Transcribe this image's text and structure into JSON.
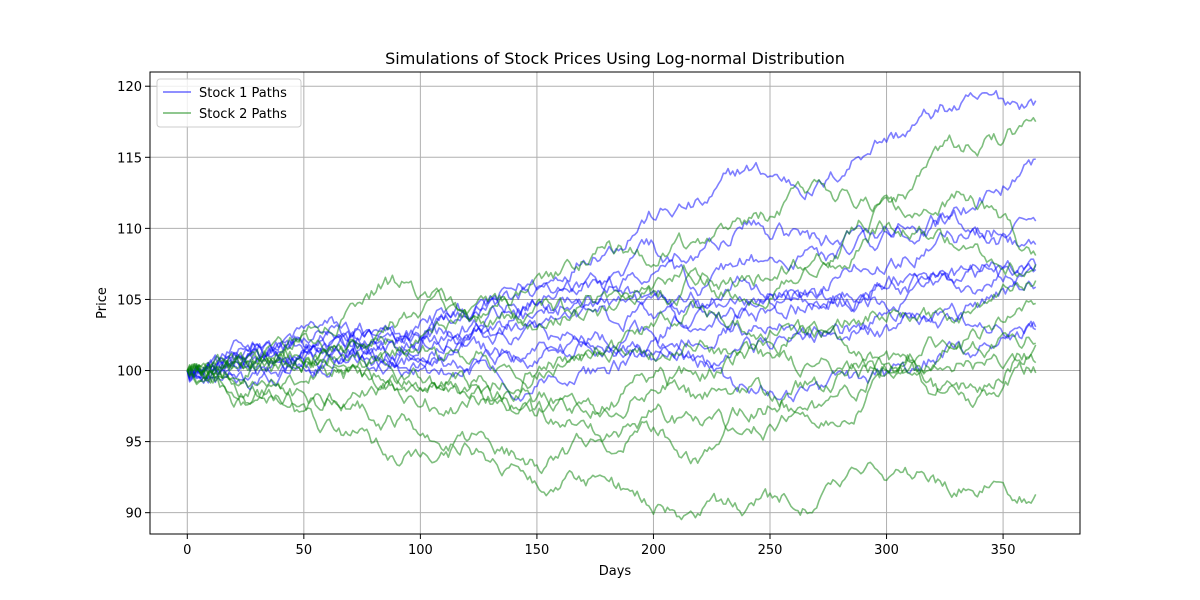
{
  "chart_data": {
    "type": "line",
    "title": "Simulations of Stock Prices Using Log-normal Distribution",
    "xlabel": "Days",
    "ylabel": "Price",
    "xlim": [
      -16,
      383
    ],
    "ylim": [
      88.5,
      121
    ],
    "xticks": [
      0,
      50,
      100,
      150,
      200,
      250,
      300,
      350
    ],
    "yticks": [
      90,
      95,
      100,
      105,
      110,
      115,
      120
    ],
    "grid": true,
    "legend_position": "upper-left",
    "legend": [
      {
        "label": "Stock 1 Paths",
        "color": "#0000ff"
      },
      {
        "label": "Stock 2 Paths",
        "color": "#008000"
      }
    ],
    "line_alpha": 0.5,
    "n_days": 365,
    "groups": [
      {
        "name": "Stock 1 Paths",
        "color": "#0000ff",
        "paths": [
          {
            "x": [
              0,
              30,
              60,
              90,
              120,
              150,
              180,
              200,
              220,
              240,
              270,
              300,
              330,
              364
            ],
            "y": [
              100,
              101.5,
              103,
              102,
              104,
              106,
              109,
              111,
              111.5,
              114,
              113,
              116.5,
              118.5,
              119
            ]
          },
          {
            "x": [
              0,
              30,
              60,
              90,
              120,
              150,
              180,
              200,
              220,
              240,
              270,
              300,
              330,
              364
            ],
            "y": [
              100,
              101,
              101.5,
              102,
              102.5,
              104,
              106,
              108,
              108.5,
              110,
              109,
              110,
              111,
              114.3
            ]
          },
          {
            "x": [
              0,
              30,
              60,
              90,
              120,
              150,
              180,
              200,
              220,
              240,
              270,
              300,
              330,
              364
            ],
            "y": [
              100,
              101,
              101.5,
              102.5,
              103.5,
              105,
              106,
              107,
              106,
              107.5,
              108,
              109,
              110.5,
              109.5
            ]
          },
          {
            "x": [
              0,
              30,
              60,
              90,
              120,
              150,
              180,
              200,
              220,
              240,
              270,
              300,
              330,
              364
            ],
            "y": [
              100,
              102,
              103,
              102.5,
              104,
              105.5,
              106,
              105,
              104.5,
              104,
              106,
              108,
              109.5,
              109
            ]
          },
          {
            "x": [
              0,
              30,
              60,
              90,
              120,
              150,
              180,
              200,
              220,
              240,
              270,
              300,
              330,
              364
            ],
            "y": [
              100,
              101.5,
              102,
              101.5,
              103,
              104.5,
              105,
              104,
              103,
              104.5,
              105,
              106,
              106.5,
              107.5
            ]
          },
          {
            "x": [
              0,
              30,
              60,
              90,
              120,
              150,
              180,
              200,
              220,
              240,
              270,
              300,
              330,
              364
            ],
            "y": [
              100,
              100.5,
              101,
              101.5,
              102.5,
              103,
              103.5,
              104.5,
              105,
              106,
              105,
              104.5,
              106,
              106.8
            ]
          },
          {
            "x": [
              0,
              30,
              60,
              90,
              120,
              150,
              180,
              200,
              220,
              240,
              270,
              300,
              330,
              364
            ],
            "y": [
              100,
              101,
              102,
              102.5,
              103,
              102.5,
              102,
              103,
              104,
              105,
              104.5,
              106,
              107,
              106.5
            ]
          },
          {
            "x": [
              0,
              30,
              60,
              90,
              120,
              150,
              180,
              200,
              220,
              240,
              270,
              300,
              330,
              364
            ],
            "y": [
              100,
              100.5,
              101.5,
              100.5,
              101.5,
              101,
              102,
              101.5,
              102.5,
              103,
              102.5,
              103.5,
              104,
              106
            ]
          },
          {
            "x": [
              0,
              30,
              60,
              90,
              120,
              150,
              180,
              200,
              220,
              240,
              270,
              300,
              330,
              364
            ],
            "y": [
              100,
              99.5,
              100.5,
              101,
              100.5,
              101.5,
              102,
              101,
              100.5,
              101.5,
              102.5,
              103,
              103.5,
              103
            ]
          },
          {
            "x": [
              0,
              30,
              60,
              90,
              120,
              150,
              180,
              200,
              220,
              240,
              270,
              300,
              330,
              364
            ],
            "y": [
              100,
              100,
              100.5,
              100.5,
              100,
              99.5,
              100,
              101,
              100.5,
              99,
              98.5,
              99.5,
              101.5,
              102.8
            ]
          }
        ]
      },
      {
        "name": "Stock 2 Paths",
        "color": "#008000",
        "paths": [
          {
            "x": [
              0,
              30,
              60,
              90,
              120,
              150,
              180,
              200,
              220,
              240,
              270,
              300,
              330,
              364
            ],
            "y": [
              100,
              101,
              102.5,
              102,
              103.5,
              106,
              108.5,
              108,
              109,
              110.5,
              112.5,
              112,
              115.5,
              117
            ]
          },
          {
            "x": [
              0,
              30,
              60,
              90,
              120,
              150,
              180,
              200,
              220,
              240,
              270,
              300,
              330,
              364
            ],
            "y": [
              100,
              100.5,
              103,
              106,
              104,
              103.5,
              104.5,
              106,
              107,
              106.5,
              108,
              111,
              112.5,
              108.5
            ]
          },
          {
            "x": [
              0,
              30,
              60,
              90,
              120,
              150,
              180,
              200,
              220,
              240,
              270,
              300,
              330,
              364
            ],
            "y": [
              100,
              100,
              101,
              103.5,
              104.5,
              104,
              104,
              105,
              106.5,
              105,
              107,
              110,
              109,
              107
            ]
          },
          {
            "x": [
              0,
              30,
              60,
              90,
              120,
              150,
              180,
              200,
              220,
              240,
              270,
              300,
              330,
              364
            ],
            "y": [
              100,
              101,
              100.5,
              101.5,
              101,
              100.5,
              101,
              101.5,
              102,
              101.5,
              103,
              104.5,
              104,
              106.5
            ]
          },
          {
            "x": [
              0,
              30,
              60,
              90,
              120,
              150,
              180,
              200,
              220,
              240,
              270,
              300,
              330,
              364
            ],
            "y": [
              100,
              100.5,
              101,
              100,
              99.5,
              100,
              102,
              103.5,
              104.5,
              103,
              102.5,
              100.5,
              102,
              104.3
            ]
          },
          {
            "x": [
              0,
              30,
              60,
              90,
              120,
              150,
              180,
              200,
              220,
              240,
              270,
              300,
              330,
              364
            ],
            "y": [
              100,
              99.5,
              101,
              99.5,
              98.5,
              98,
              97.5,
              99,
              100,
              101,
              100,
              100.5,
              101.5,
              102.5
            ]
          },
          {
            "x": [
              0,
              30,
              60,
              90,
              120,
              150,
              180,
              200,
              220,
              240,
              270,
              300,
              330,
              364
            ],
            "y": [
              100,
              99.5,
              100,
              99,
              98,
              97.5,
              98,
              99.5,
              98,
              99,
              97,
              99,
              100.5,
              101
            ]
          },
          {
            "x": [
              0,
              30,
              60,
              90,
              120,
              150,
              180,
              200,
              220,
              240,
              270,
              300,
              330,
              364
            ],
            "y": [
              100,
              99,
              98,
              98.5,
              97.5,
              96.5,
              95.5,
              97,
              96,
              95.5,
              97,
              100,
              98,
              99.8
            ]
          },
          {
            "x": [
              0,
              30,
              60,
              90,
              120,
              150,
              180,
              200,
              220,
              240,
              270,
              300,
              330,
              364
            ],
            "y": [
              100,
              98.5,
              97.5,
              96.5,
              95,
              93.5,
              95,
              95.5,
              94,
              97,
              99,
              100,
              98.5,
              101.2
            ]
          },
          {
            "x": [
              0,
              30,
              60,
              90,
              120,
              150,
              180,
              200,
              220,
              240,
              270,
              300,
              330,
              364
            ],
            "y": [
              100,
              97.5,
              96,
              94,
              94.5,
              92.5,
              92,
              91,
              90,
              90.5,
              91,
              93,
              92,
              91.6
            ]
          }
        ]
      }
    ]
  }
}
